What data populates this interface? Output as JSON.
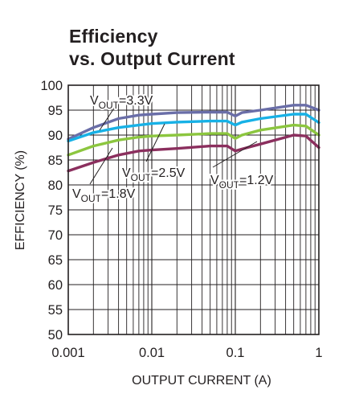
{
  "title_line1": "Efficiency",
  "title_line2": "vs. Output Current",
  "chart_data": {
    "type": "line",
    "xlabel": "OUTPUT CURRENT (A)",
    "ylabel": "EFFICIENCY (%)",
    "xscale": "log",
    "xlim": [
      0.001,
      1
    ],
    "ylim": [
      50,
      100
    ],
    "grid": true,
    "x_tick_labels": [
      "0.001",
      "0.01",
      "0.1",
      "1"
    ],
    "y_tick_labels": [
      "100",
      "95",
      "90",
      "85",
      "80",
      "75",
      "70",
      "65",
      "60",
      "55",
      "50"
    ],
    "series": [
      {
        "name": "VOUT=3.3V",
        "label_main": "V",
        "label_sub": "OUT",
        "label_rest": "=3.3V",
        "color": "#6a6ea8",
        "x": [
          0.001,
          0.002,
          0.004,
          0.007,
          0.01,
          0.02,
          0.05,
          0.08,
          0.1,
          0.12,
          0.2,
          0.5,
          0.7,
          1
        ],
        "y": [
          89.2,
          91.5,
          93.3,
          94.0,
          94.2,
          94.5,
          94.6,
          94.6,
          93.8,
          94.5,
          95.0,
          96.0,
          96.0,
          95.0
        ]
      },
      {
        "name": "VOUT=2.5V",
        "label_main": "V",
        "label_sub": "OUT",
        "label_rest": "=2.5V",
        "color": "#17b1e6",
        "x": [
          0.001,
          0.002,
          0.004,
          0.007,
          0.01,
          0.02,
          0.05,
          0.08,
          0.1,
          0.12,
          0.2,
          0.5,
          0.7,
          1
        ],
        "y": [
          88.8,
          90.5,
          91.5,
          92.0,
          92.3,
          92.6,
          92.8,
          92.8,
          92.0,
          92.6,
          93.3,
          94.2,
          94.2,
          92.5
        ]
      },
      {
        "name": "VOUT=1.8V",
        "label_main": "V",
        "label_sub": "OUT",
        "label_rest": "=1.8V",
        "color": "#8cc63f",
        "x": [
          0.001,
          0.002,
          0.004,
          0.007,
          0.01,
          0.02,
          0.05,
          0.08,
          0.1,
          0.12,
          0.2,
          0.5,
          0.7,
          1
        ],
        "y": [
          86.0,
          87.8,
          89.0,
          89.6,
          89.8,
          90.0,
          90.3,
          90.3,
          89.3,
          90.0,
          91.0,
          92.0,
          91.8,
          90.0
        ]
      },
      {
        "name": "VOUT=1.2V",
        "label_main": "V",
        "label_sub": "OUT",
        "label_rest": "=1.2V",
        "color": "#8b2f5e",
        "x": [
          0.001,
          0.002,
          0.004,
          0.007,
          0.01,
          0.02,
          0.05,
          0.08,
          0.1,
          0.12,
          0.2,
          0.5,
          0.7,
          1
        ],
        "y": [
          82.8,
          84.5,
          86.0,
          86.8,
          87.0,
          87.3,
          87.8,
          87.8,
          86.8,
          87.2,
          88.2,
          90.0,
          89.8,
          87.5
        ]
      }
    ]
  }
}
